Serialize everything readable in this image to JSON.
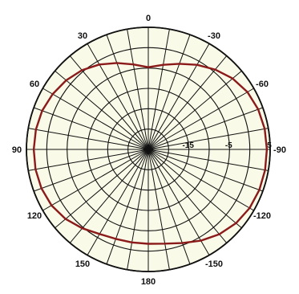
{
  "chart_data": {
    "type": "polar",
    "title": "",
    "angle_ticks": [
      {
        "angle": 0,
        "label": "0"
      },
      {
        "angle": 30,
        "label": "30"
      },
      {
        "angle": 60,
        "label": "60"
      },
      {
        "angle": 90,
        "label": "90"
      },
      {
        "angle": 120,
        "label": "120"
      },
      {
        "angle": 150,
        "label": "150"
      },
      {
        "angle": 180,
        "label": "180"
      },
      {
        "angle": -150,
        "label": "-150"
      },
      {
        "angle": -120,
        "label": "-120"
      },
      {
        "angle": -90,
        "label": "-90"
      },
      {
        "angle": -60,
        "label": "-60"
      },
      {
        "angle": -30,
        "label": "-30"
      }
    ],
    "radial_ticks": [
      {
        "value": -15,
        "label": "-15"
      },
      {
        "value": -5,
        "label": "-5"
      },
      {
        "value": 5,
        "label": "5"
      }
    ],
    "radial_range": [
      -25,
      5
    ],
    "ring_values": [
      -20,
      -15,
      -10,
      -5,
      0,
      5
    ],
    "spoke_step_deg": 10,
    "angle_direction": "counterclockwise from top (positive toward left)",
    "grid": true,
    "colors": {
      "plot_background": "#fafae8",
      "grid": "#111111",
      "series": "#8b1a1a"
    },
    "series": [
      {
        "angles": [
          0,
          10,
          20,
          30,
          40,
          50,
          60,
          70,
          80,
          90,
          100,
          110,
          120,
          130,
          140,
          150,
          160,
          170,
          180,
          190,
          200,
          210,
          220,
          230,
          240,
          250,
          260,
          270,
          280,
          290,
          300,
          310,
          320,
          330,
          340,
          350
        ],
        "values": [
          -4.8,
          -3.8,
          -2.4,
          -0.9,
          0.4,
          1.4,
          2.2,
          2.8,
          3.1,
          3.2,
          3.2,
          3.0,
          2.5,
          1.6,
          0.3,
          -1.0,
          -1.6,
          -1.8,
          -1.8,
          -1.5,
          -0.5,
          0.9,
          2.2,
          3.2,
          3.8,
          4.1,
          4.2,
          4.2,
          4.1,
          3.8,
          3.2,
          2.1,
          0.6,
          -1.0,
          -2.6,
          -3.9
        ]
      }
    ]
  }
}
